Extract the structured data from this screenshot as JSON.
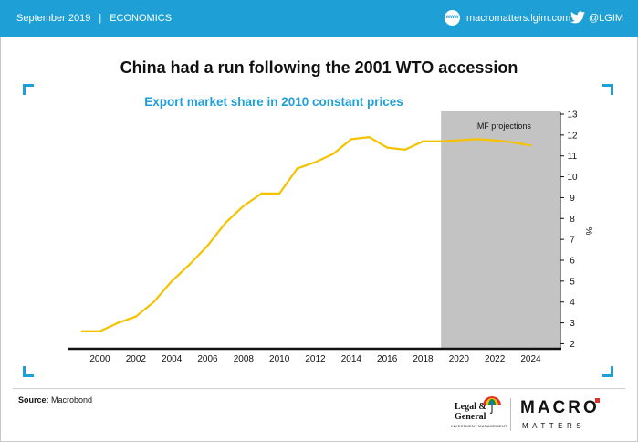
{
  "header": {
    "date": "September 2019",
    "separator": "|",
    "section": "ECONOMICS",
    "website_icon": "web-globe-icon",
    "website_icon_text": "www",
    "website": "macromatters.lgim.com",
    "twitter_icon": "twitter-bird-icon",
    "twitter_handle": "@LGIM",
    "bar_color": "#1e9fd6"
  },
  "title": "China had a run following the 2001 WTO accession",
  "footer": {
    "source_label": "Source:",
    "source_value": "Macrobond",
    "logo_lg_line1": "Legal &",
    "logo_lg_line2": "General",
    "logo_lg_line3": "INVESTMENT MANAGEMENT",
    "logo_macro": "MACRO",
    "logo_matters": "MATTERS"
  },
  "chart_data": {
    "type": "line",
    "title": "Export market share in 2010 constant prices",
    "xlabel": "",
    "ylabel": "%",
    "xlim": [
      1998.5,
      2025.5
    ],
    "ylim": [
      1.8,
      13
    ],
    "xticks": [
      2000,
      2002,
      2004,
      2006,
      2008,
      2010,
      2012,
      2014,
      2016,
      2018,
      2020,
      2022,
      2024
    ],
    "yticks": [
      2,
      3,
      4,
      5,
      6,
      7,
      8,
      9,
      10,
      11,
      12,
      13
    ],
    "y_axis_side": "right",
    "grid": false,
    "line_color": "#f5c200",
    "shaded_region": {
      "label": "IMF projections",
      "x_start": 2019,
      "x_end": 2025.5,
      "color": "#c3c3c3"
    },
    "series": [
      {
        "x": [
          1999,
          2000,
          2001,
          2002,
          2003,
          2004,
          2005,
          2006,
          2007,
          2008,
          2009,
          2010,
          2011,
          2012,
          2013,
          2014,
          2015,
          2016,
          2017,
          2018,
          2019,
          2020,
          2021,
          2022,
          2023,
          2024
        ],
        "values": [
          2.6,
          2.6,
          3.0,
          3.3,
          4.0,
          5.0,
          5.8,
          6.7,
          7.8,
          8.6,
          9.2,
          9.2,
          10.4,
          10.7,
          11.1,
          11.8,
          11.9,
          11.4,
          11.3,
          11.7,
          11.7,
          11.75,
          11.8,
          11.75,
          11.65,
          11.5
        ]
      }
    ]
  }
}
